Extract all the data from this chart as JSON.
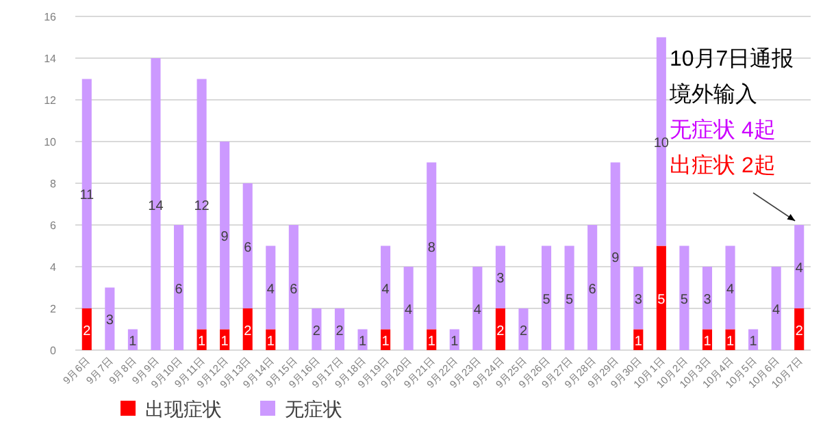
{
  "chart_data": {
    "type": "bar",
    "stacked": true,
    "grid": "y",
    "legend": "bottom left",
    "categories": [
      "9月6日",
      "9月7日",
      "9月8日",
      "9月9日",
      "9月10日",
      "9月11日",
      "9月12日",
      "9月13日",
      "9月14日",
      "9月15日",
      "9月16日",
      "9月17日",
      "9月18日",
      "9月19日",
      "9月20日",
      "9月21日",
      "9月22日",
      "9月23日",
      "9月24日",
      "9月25日",
      "9月26日",
      "9月27日",
      "9月28日",
      "9月29日",
      "9月30日",
      "10月1日",
      "10月2日",
      "10月3日",
      "10月4日",
      "10月5日",
      "10月6日",
      "10月7日"
    ],
    "series": [
      {
        "name": "出现症状",
        "color": "#ff0000",
        "values": [
          2,
          0,
          0,
          0,
          0,
          1,
          1,
          2,
          1,
          0,
          0,
          0,
          0,
          1,
          0,
          1,
          0,
          0,
          2,
          0,
          0,
          0,
          0,
          0,
          1,
          5,
          0,
          1,
          1,
          0,
          0,
          2
        ],
        "value_labels": [
          "2",
          null,
          null,
          null,
          null,
          "1",
          "1",
          "2",
          "1",
          null,
          null,
          null,
          null,
          "1",
          null,
          "1",
          null,
          null,
          "2",
          null,
          null,
          null,
          null,
          null,
          "1",
          "5",
          null,
          "1",
          "1",
          null,
          null,
          "2"
        ]
      },
      {
        "name": "无症状",
        "color": "#cc99ff",
        "values": [
          11,
          3,
          1,
          14,
          6,
          12,
          9,
          6,
          4,
          6,
          2,
          2,
          1,
          4,
          4,
          8,
          1,
          4,
          3,
          2,
          5,
          5,
          6,
          9,
          3,
          10,
          5,
          3,
          4,
          1,
          4,
          4
        ],
        "value_labels": [
          "11",
          "3",
          "1",
          "14",
          "6",
          "12",
          "9",
          "6",
          "4",
          "6",
          "2",
          "2",
          "1",
          "4",
          "4",
          "8",
          "1",
          "4",
          "3",
          "2",
          "5",
          "5",
          "6",
          "9",
          "3",
          "10",
          "5",
          "3",
          "4",
          "1",
          "4",
          "4"
        ]
      }
    ],
    "ylim": [
      0,
      16
    ],
    "yticks": [
      0,
      2,
      4,
      6,
      8,
      10,
      12,
      14,
      16
    ],
    "annotations": [
      "10月7日通报",
      "境外输入",
      "无症状 4起",
      {
        "text": "出症状 2起",
        "x": "10月7日",
        "y": 6
      }
    ]
  }
}
